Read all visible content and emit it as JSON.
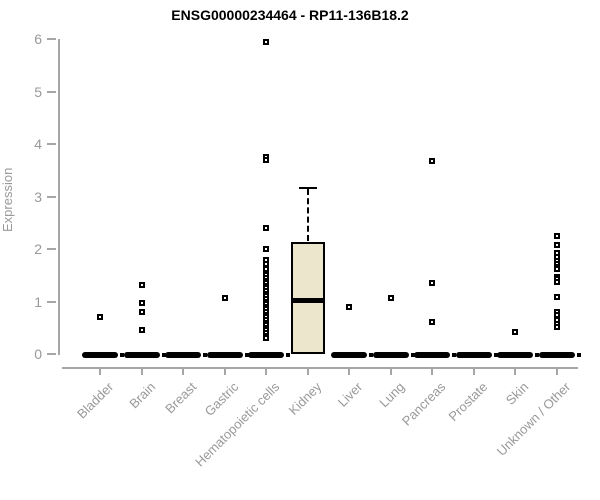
{
  "chart_data": {
    "type": "boxplot",
    "title": "ENSG00000234464 - RP11-136B18.2",
    "ylabel": "Expression",
    "xlabel": "",
    "ylim": [
      0,
      6
    ],
    "yticks": [
      0,
      1,
      2,
      3,
      4,
      5,
      6
    ],
    "grid": false,
    "legend": false,
    "categories": [
      "Bladder",
      "Brain",
      "Breast",
      "Gastric",
      "Hematopoietic cells",
      "Kidney",
      "Liver",
      "Lung",
      "Pancreas",
      "Prostate",
      "Skin",
      "Unknown / Other"
    ],
    "series": [
      {
        "category": "Bladder",
        "zero_bar": true,
        "points": [
          0.7
        ]
      },
      {
        "category": "Brain",
        "zero_bar": true,
        "points": [
          1.31,
          0.97,
          0.8,
          0.45
        ]
      },
      {
        "category": "Breast",
        "zero_bar": true,
        "points": []
      },
      {
        "category": "Gastric",
        "zero_bar": true,
        "points": [
          1.07
        ]
      },
      {
        "category": "Hematopoietic cells",
        "zero_bar": true,
        "points": [
          5.94,
          3.76,
          3.7,
          2.4,
          2.0,
          1.79,
          1.71,
          1.62,
          1.55,
          1.5,
          1.45,
          1.4,
          1.35,
          1.3,
          1.25,
          1.2,
          1.15,
          1.1,
          1.05,
          1.0,
          0.95,
          0.9,
          0.85,
          0.8,
          0.75,
          0.7,
          0.65,
          0.6,
          0.55,
          0.5,
          0.45,
          0.4,
          0.35,
          0.3
        ]
      },
      {
        "category": "Kidney",
        "zero_bar": false,
        "box": {
          "whisker_high": 3.16,
          "q3": 2.13,
          "median": 1.03,
          "q1": 0.03,
          "whisker_low": 0.03
        },
        "points": []
      },
      {
        "category": "Liver",
        "zero_bar": true,
        "points": [
          0.9
        ]
      },
      {
        "category": "Lung",
        "zero_bar": true,
        "points": [
          1.07
        ]
      },
      {
        "category": "Pancreas",
        "zero_bar": true,
        "points": [
          3.68,
          1.35,
          0.61
        ]
      },
      {
        "category": "Prostate",
        "zero_bar": true,
        "points": []
      },
      {
        "category": "Skin",
        "zero_bar": true,
        "points": [
          0.42
        ]
      },
      {
        "category": "Unknown / Other",
        "zero_bar": true,
        "points": [
          2.25,
          2.08,
          1.92,
          1.85,
          1.78,
          1.72,
          1.66,
          1.61,
          1.47,
          1.42,
          1.37,
          1.09,
          0.8,
          0.74,
          0.65,
          0.58,
          0.51
        ]
      }
    ],
    "colors": {
      "box_fill": "#ECE7CC",
      "box_border": "#000000",
      "point": "#000000",
      "point_center": "#FFFFFF",
      "zero_bar": "#000000",
      "axis": "#A6A6A6",
      "tick_label": "#999999",
      "title": "#000000"
    }
  }
}
